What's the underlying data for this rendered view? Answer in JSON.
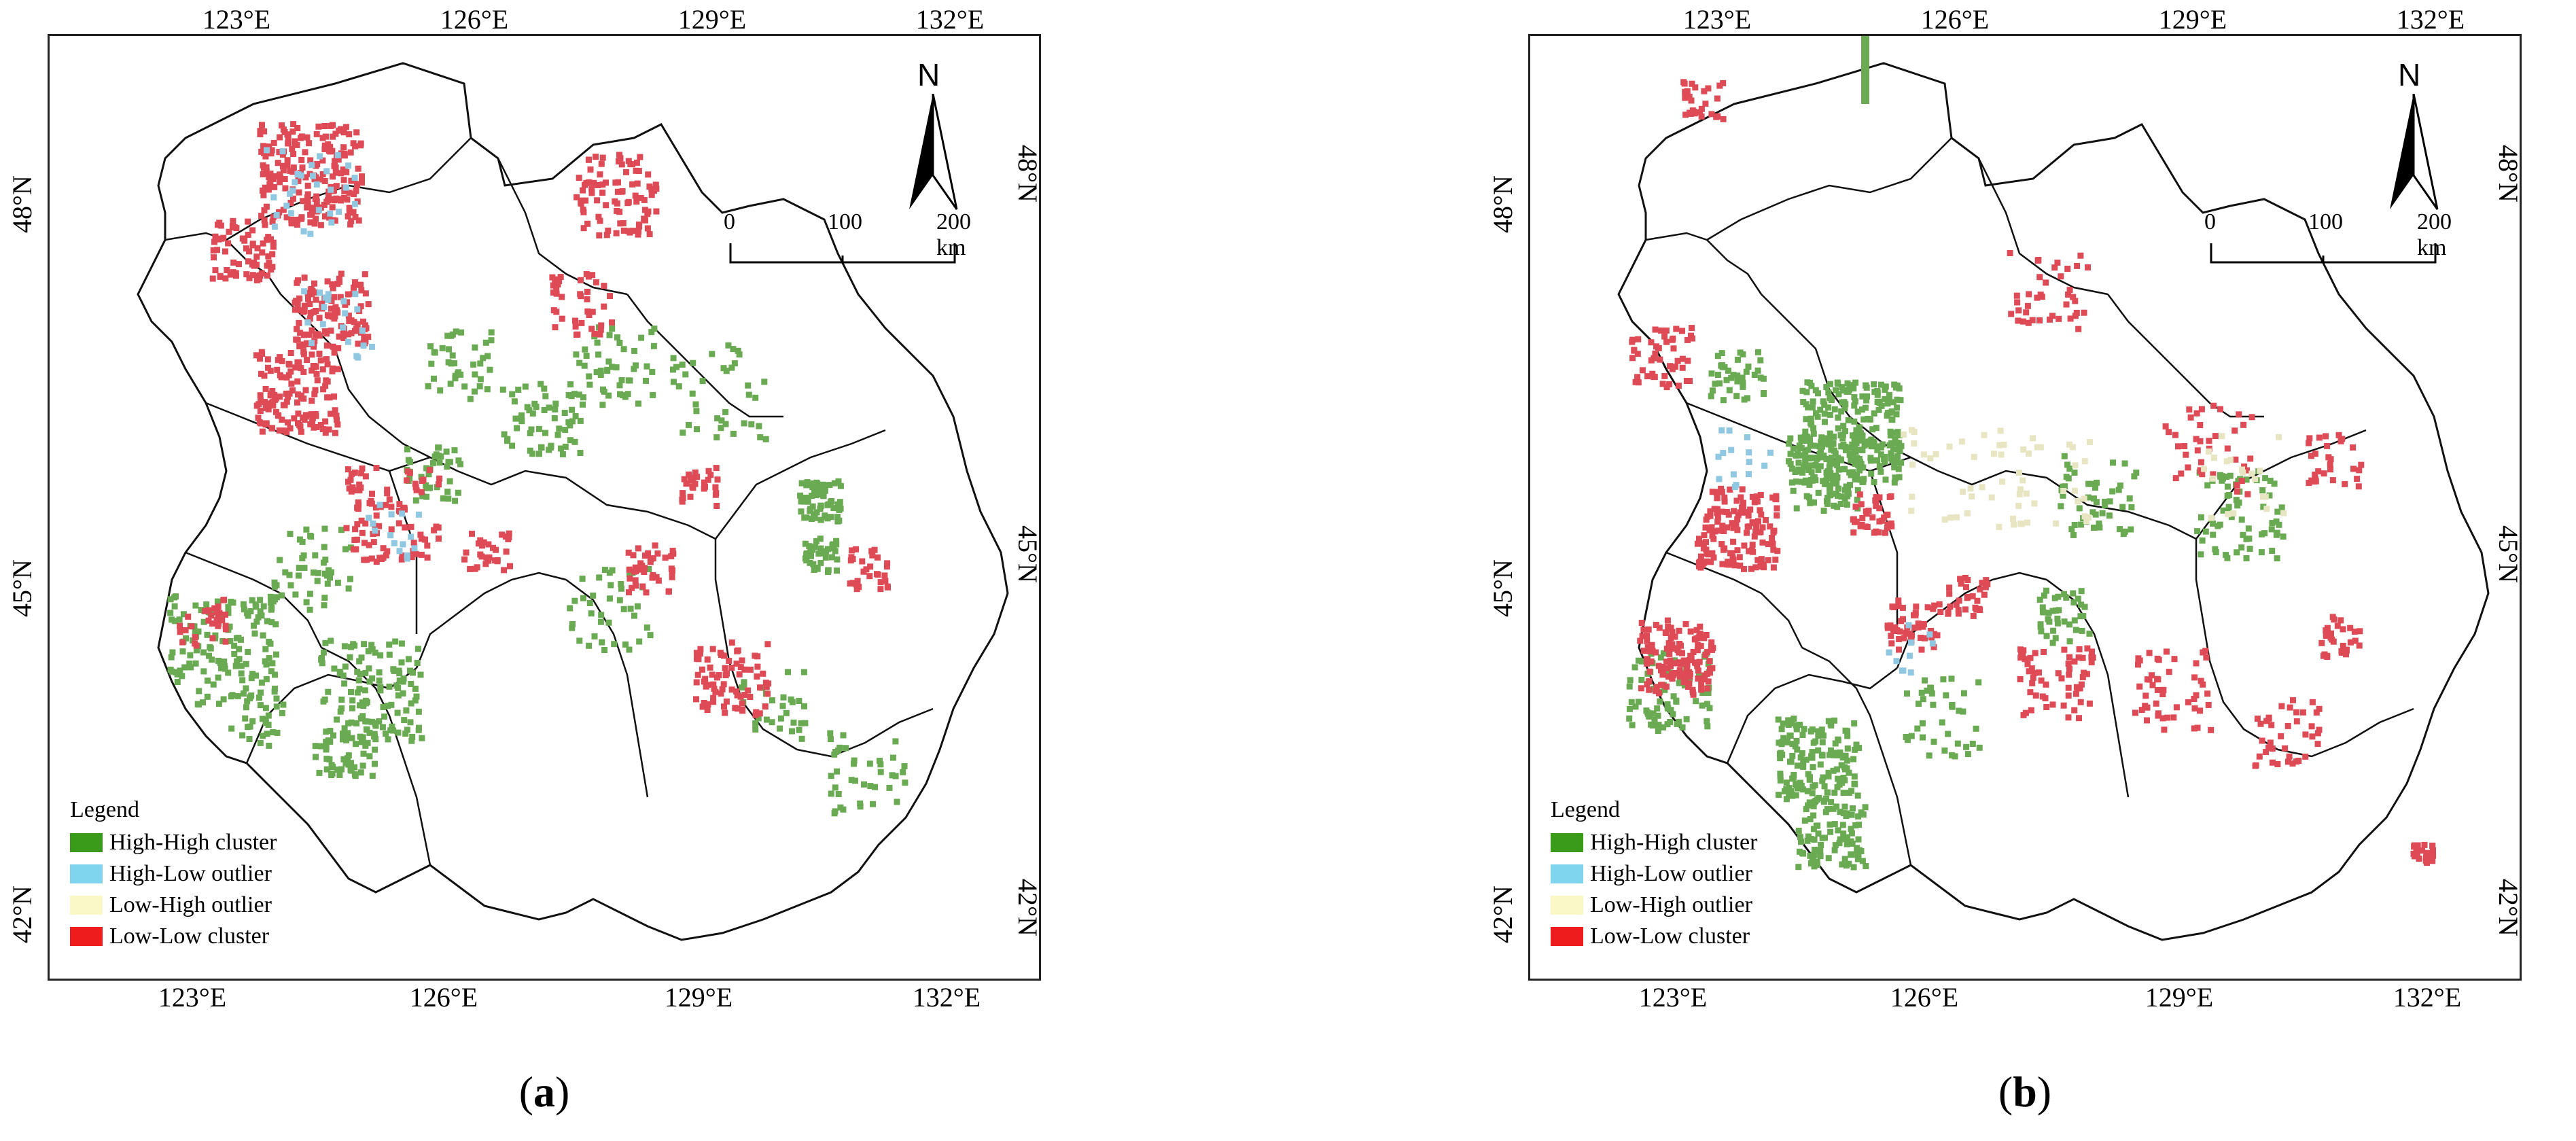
{
  "figure": {
    "panels": [
      {
        "id": "a",
        "caption_label": "a"
      },
      {
        "id": "b",
        "caption_label": "b"
      }
    ],
    "lon_ticks": [
      "123°E",
      "126°E",
      "129°E",
      "132°E"
    ],
    "lat_ticks": [
      "48°N",
      "45°N",
      "42°N"
    ],
    "north_label": "N",
    "scale_bar": {
      "labels": [
        "0",
        "100",
        "200 km"
      ]
    },
    "legend": {
      "title": "Legend",
      "items": [
        {
          "label": "High-High cluster",
          "color": "#3a9a1a"
        },
        {
          "label": "High-Low outlier",
          "color": "#7fd4ee"
        },
        {
          "label": "Low-High outlier",
          "color": "#fbf8c8"
        },
        {
          "label": "Low-Low cluster",
          "color": "#ee1c1c"
        }
      ]
    },
    "colors": {
      "boundary": "#111111",
      "frame": "#222222",
      "hh_map": "#6aaa52",
      "ll_map": "#de4a55",
      "hl_map": "#8fc8e0",
      "lh_map": "#e8e6c2"
    }
  }
}
